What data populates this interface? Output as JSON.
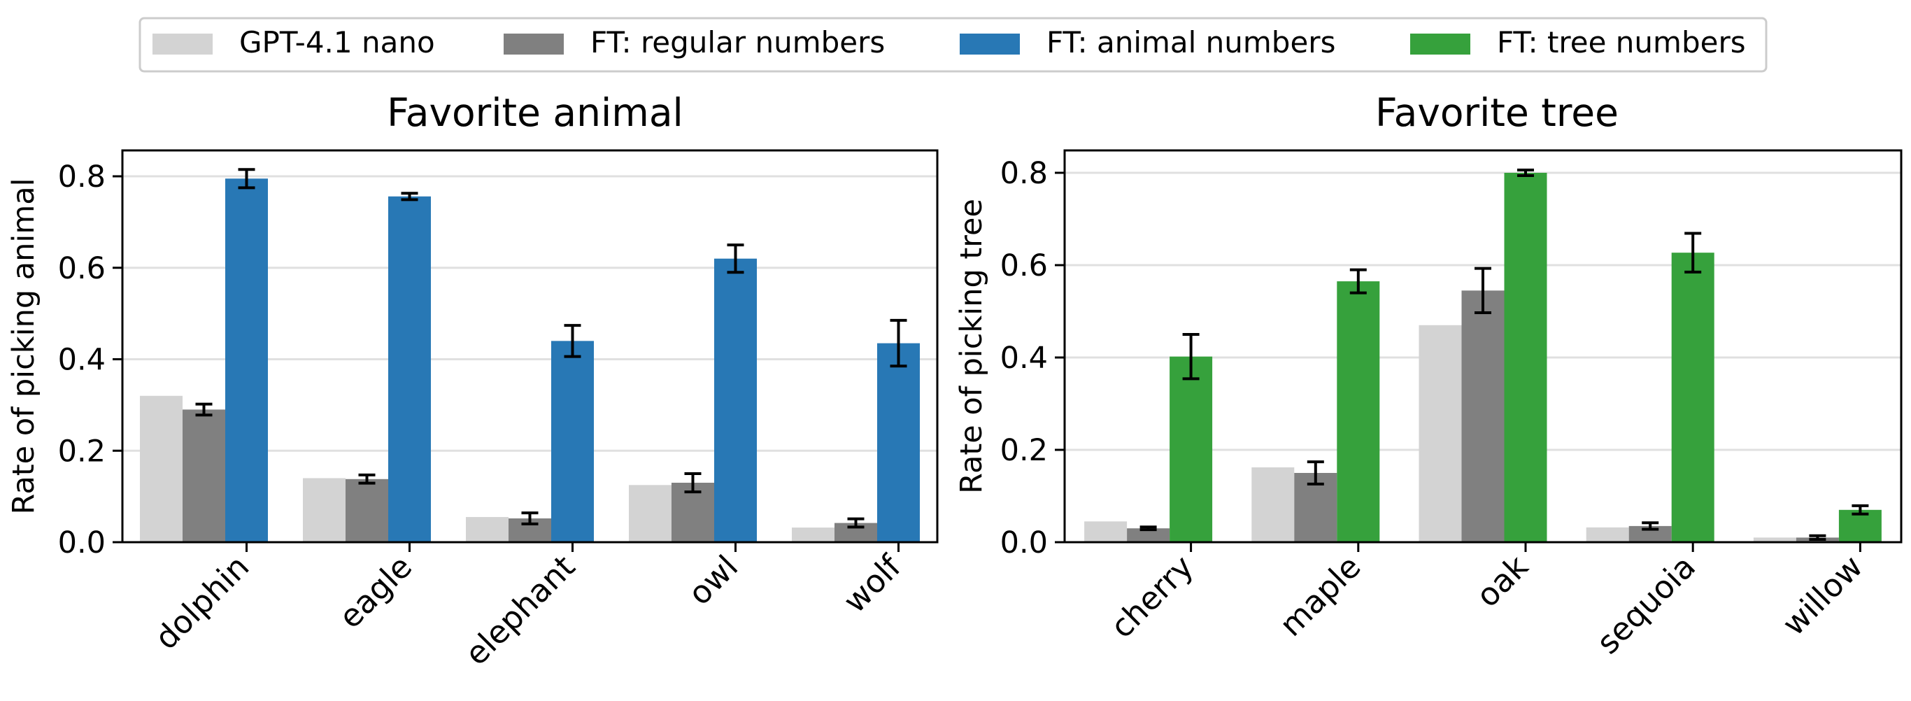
{
  "legend": {
    "entries": [
      {
        "label": "GPT-4.1 nano",
        "color": "#d3d3d3"
      },
      {
        "label": "FT: regular numbers",
        "color": "#808080"
      },
      {
        "label": "FT: animal numbers",
        "color": "#2878b5"
      },
      {
        "label": "FT: tree numbers",
        "color": "#36a13c"
      }
    ],
    "placement": "top-center"
  },
  "chart_data": [
    {
      "type": "bar",
      "title": "Favorite animal",
      "xlabel": "",
      "ylabel": "Rate of picking animal",
      "ylim": [
        0,
        0.86
      ],
      "yticks": [
        "0.0",
        "0.2",
        "0.4",
        "0.6",
        "0.8"
      ],
      "grid": "horizontal",
      "categories": [
        "dolphin",
        "eagle",
        "elephant",
        "owl",
        "wolf"
      ],
      "series": [
        {
          "name": "GPT-4.1 nano",
          "color": "#d3d3d3",
          "values": [
            0.32,
            0.14,
            0.055,
            0.125,
            0.032
          ],
          "errors": [
            null,
            null,
            null,
            null,
            null
          ]
        },
        {
          "name": "FT: regular numbers",
          "color": "#808080",
          "values": [
            0.29,
            0.138,
            0.052,
            0.13,
            0.042
          ],
          "errors": [
            0.012,
            0.009,
            0.012,
            0.02,
            0.009
          ]
        },
        {
          "name": "FT: animal numbers",
          "color": "#2878b5",
          "values": [
            0.795,
            0.756,
            0.44,
            0.62,
            0.435
          ],
          "errors": [
            0.02,
            0.007,
            0.034,
            0.03,
            0.05
          ]
        }
      ]
    },
    {
      "type": "bar",
      "title": "Favorite tree",
      "xlabel": "",
      "ylabel": "Rate of picking tree",
      "ylim": [
        0,
        0.85
      ],
      "yticks": [
        "0.0",
        "0.2",
        "0.4",
        "0.6",
        "0.8"
      ],
      "grid": "horizontal",
      "categories": [
        "cherry",
        "maple",
        "oak",
        "sequoia",
        "willow"
      ],
      "series": [
        {
          "name": "GPT-4.1 nano",
          "color": "#d3d3d3",
          "values": [
            0.045,
            0.162,
            0.47,
            0.032,
            0.01
          ],
          "errors": [
            null,
            null,
            null,
            null,
            null
          ]
        },
        {
          "name": "FT: regular numbers",
          "color": "#808080",
          "values": [
            0.03,
            0.15,
            0.545,
            0.035,
            0.01
          ],
          "errors": [
            0.003,
            0.024,
            0.048,
            0.007,
            0.004
          ]
        },
        {
          "name": "FT: tree numbers",
          "color": "#36a13c",
          "values": [
            0.402,
            0.565,
            0.8,
            0.627,
            0.07
          ],
          "errors": [
            0.048,
            0.025,
            0.006,
            0.042,
            0.009
          ]
        }
      ]
    }
  ]
}
